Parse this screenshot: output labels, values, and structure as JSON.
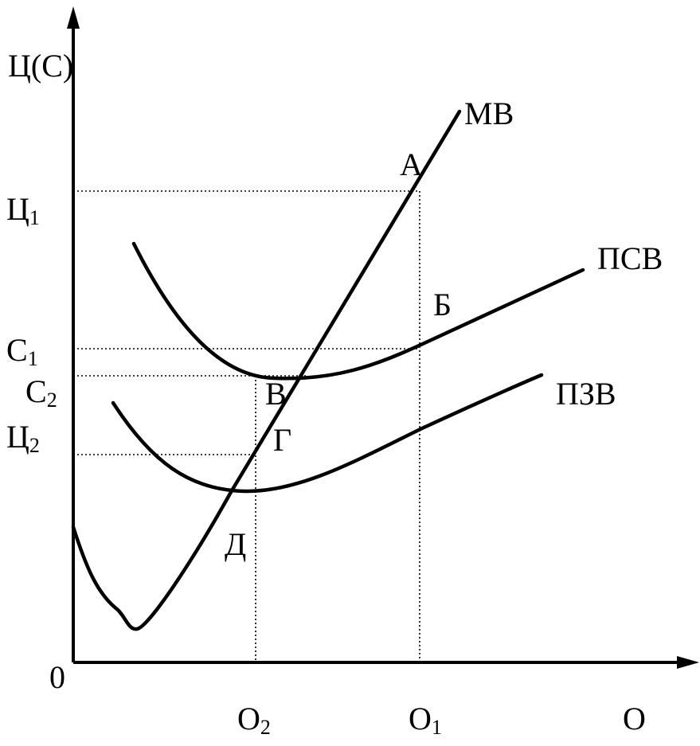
{
  "chart_data": {
    "type": "line",
    "title": "",
    "ylabel": "Ц(С)",
    "xlabel": "О",
    "origin_label": "0",
    "x_ticks": [
      {
        "base": "О",
        "sub": "2"
      },
      {
        "base": "О",
        "sub": "1"
      }
    ],
    "y_ticks": [
      {
        "base": "Ц",
        "sub": "1"
      },
      {
        "base": "С",
        "sub": "1"
      },
      {
        "base": "С",
        "sub": "2"
      },
      {
        "base": "Ц",
        "sub": "2"
      }
    ],
    "series": [
      {
        "name": "МВ"
      },
      {
        "name": "ПСВ"
      },
      {
        "name": "ПЗВ"
      }
    ],
    "point_labels": [
      "А",
      "Б",
      "В",
      "Г",
      "Д"
    ],
    "grid": false,
    "legend": "none"
  }
}
